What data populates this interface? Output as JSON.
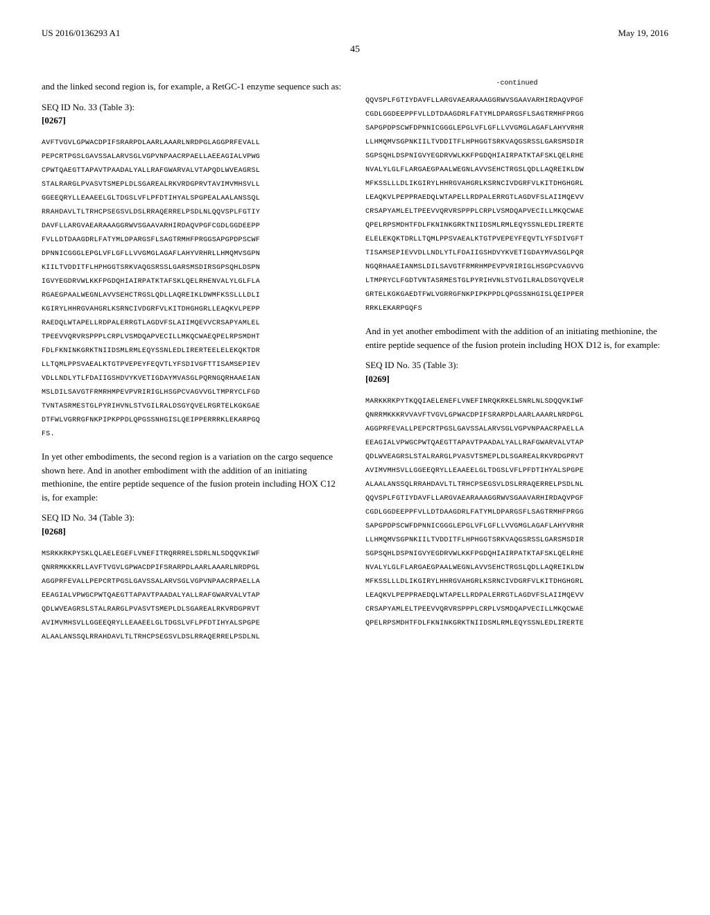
{
  "header": {
    "pub_number": "US 2016/0136293 A1",
    "pub_date": "May 19, 2016"
  },
  "page_number": "45",
  "left_col": {
    "intro_text": "and the linked second region is, for example, a RetGC-1 enzyme sequence such as:",
    "seq_label": "SEQ ID No. 33 (Table 3):",
    "para_num": "[0267]",
    "sequence": "AVFTVGVLGPWACDPIFSRARPDLAARLAAARLNRDPGLAGGPRFEVALL\nPEPCRTPGSLGAVSSALARVSGLVGPVNPAACRPAELLAEEAGIALVPWG\nCPWTQAEGTTAPAVTPAADALYALLRAFGWARVALVTAPQDLWVEAGRSL\nSTALRARGLPVASVTSMEPLDLSGAREALRKVRDGPRVTAVIMVMHSVLL\nGGEEQRYLLEAAEELGLTDGSLVFLPFDTIHYALSPGPEALAALANSSQL\nRRAHDAVLTLTRHCPSEGSVLDSLRRAQERRELPSDLNLQQVSPLFGTIY\nDAVFLLARGVAEARAAAGGRWVSGAAVARHIRDAQVPGFCGDLGGDEEPP\nFVLLDTDAAGDRLFATYMLDPARGSFLSAGTRMHFPRGGSAPGPDPSCWF\nDPNNICGGGLEPGLVFLGFLLVVGMGLAGAFLAHYVRHRLLHMQMVSGPN\nKIILTVDDITFLHPHGGTSRKVAQGSRSSLGARSMSDIRSGPSQHLDSPN\nIGVYEGDRVWLKKFPGDQHIAIRPATKTAFSKLQELRHENVALYLGLFLA\nRGAEGPAALWEGNLAVVSEHCTRGSLQDLLAQREIKLDWMFKSSLLLDLI\nKGIRYLHHRGVAHGRLKSRNCIVDGRFVLKITDHGHGRLLEAQKVLPEPP\nRAEDQLWTAPELLRDPALERRGTLAGDVFSLAIIMQEVVCRSAPYAMLEL\nTPEEVVQRVRSPPPLCRPLVSMDQAPVECILLMKQCWAEQPELRPSMDHT\nFDLFKNINKGRKTNIIDSMLRMLEQYSSNLEDLIRERTEELELEKQKTDR\nLLTQMLPPSVAEALKTGTPVEPEYFEQVTLYFSDIVGFTTISAMSEPIEV\nVDLLNDLYTLFDAIIGSHDVYKVETIGDAYMVASGLPQRNGQRHAAEIAN\nMSLDILSAVGTFRMRHMPEVPVRIRIGLHSGPCVAGVVGLTMPRYCLFGD\nTVNTASRMESTGLPYRIHVNLSTVGILRALDSGYQVELRGRTELKGKGAE\nDTFWLVGRRGFNKPIPKPPDLQPGSSNHGISLQEIPPERRRKLEKARPGQ\nFS.",
    "mid_text": "In yet other embodiments, the second region is a variation on the cargo sequence shown here. And in another embodiment with the addition of an initiating methionine, the entire peptide sequence of the fusion protein including HOX C12 is, for example:",
    "seq_label_2": "SEQ ID No. 34 (Table 3):",
    "para_num_2": "[0268]",
    "sequence_2": "MSRKKRKPYSKLQLAELEGEFLVNEFITRQRRRELSDRLNLSDQQVKIWF\nQNRRMKKKRLLAVFTVGVLGPWACDPIFSRARPDLAARLAAARLNRDPGL\nAGGPRFEVALLPEPCRTPGSLGAVSSALARVSGLVGPVNPAACRPAELLA\nEEAGIALVPWGCPWTQAEGTTAPAVTPAADALYALLRAFGWARVALVTAP\nQDLWVEAGRSLSTALRARGLPVASVTSMEPLDLSGAREALRKVRDGPRVT\nAVIMVMHSVLLGGEEQRYLLEAAEELGLTDGSLVFLPFDTIHYALSPGPE\nALAALANSSQLRRAHDAVLTLTRHCPSEGSVLDSLRRAQERRELPSDLNL"
  },
  "right_col": {
    "continued": "-continued",
    "sequence_top": "QQVSPLFGTIYDAVFLLARGVAEARAAAGGRWVSGAAVARHIRDAQVPGF\nCGDLGGDEEPPFVLLDTDAAGDRLFATYMLDPARGSFLSAGTRMHFPRGG\nSAPGPDPSCWFDPNNICGGGLEPGLVFLGFLLVVGMGLAGAFLAHYVRHR\nLLHMQMVSGPNKIILTVDDITFLHPHGGTSRKVAQGSRSSLGARSMSDIR\nSGPSQHLDSPNIGVYEGDRVWLKKFPGDQHIAIRPATKTAFSKLQELRHE\nNVALYLGLFLARGAEGPAALWEGNLAVVSEHCTRGSLQDLLAQREIKLDW\nMFKSSLLLDLIKGIRYLHHRGVAHGRLKSRNCIVDGRFVLKITDHGHGRL\nLEAQKVLPEPPRAEDQLWTAPELLRDPALERRGTLAGDVFSLAIIMQEVV\nCRSAPYAMLELTPEEVVQRVRSPPPLCRPLVSMDQAPVECILLMKQCWAE\nQPELRPSMDHTFDLFKNINKGRKTNIIDSMLRMLEQYSSNLEDLIRERTE\nELELEKQKTDRLLTQMLPPSVAEALKTGTPVEPEYFEQVTLYFSDIVGFT\nTISAMSEPIEVVDLLNDLYTLFDAIIGSHDVYKVETIGDAYMVASGLPQR\nNGQRHAAEIANMSLDILSAVGTFRMRHMPEVPVRIRIGLHSGPCVAGVVG\nLTMPRYCLFGDTVNTASRMESTGLPYRIHVNLSTVGILRALDSGYQVELR\nGRTELKGKGAEDTFWLVGRRGFNKPIPKPPDLQPGSSNHGISLQEIPPER\nRRKLEKARPGQFS",
    "mid_text": "And in yet another embodiment with the addition of an initiating methionine, the entire peptide sequence of the fusion protein including HOX D12 is, for example:",
    "seq_label": "SEQ ID No. 35 (Table 3):",
    "para_num": "[0269]",
    "sequence_bottom": "MARKKRKPYTKQQIAELENEFLVNEFINRQKRKELSNRLNLSDQQVKIWF\nQNRRMKKKRVVAVFTVGVLGPWACDPIFSRARPDLAARLAAARLNRDPGL\nAGGPRFEVALLPEPCRTPGSLGAVSSALARVSGLVGPVNPAACRPAELLA\nEEAGIALVPWGCPWTQAEGTTAPAVTPAADALYALLRAFGWARVALVTAP\nQDLWVEAGRSLSTALRARGLPVASVTSMEPLDLSGAREALRKVRDGPRVT\nAVIMVMHSVLLGGEEQRYLLEAAEELGLTDGSLVFLPFDTIHYALSPGPE\nALAALANSSQLRRAHDAVLTLTRHCPSEGSVLDSLRRAQERRELPSDLNL\nQQVSPLFGTIYDAVFLLARGVAEARAAAGGRWVSGAAVARHIRDAQVPGF\nCGDLGGDEEPPFVLLDTDAAGDRLFATYMLDPARGSFLSAGTRMHFPRGG\nSAPGPDPSCWFDPNNICGGGLEPGLVFLGFLLVVGMGLAGAFLAHYVRHR\nLLHMQMVSGPNKIILTVDDITFLHPHGGTSRKVAQGSRSSLGARSMSDIR\nSGPSQHLDSPNIGVYEGDRVWLKKFPGDQHIAIRPATKTAFSKLQELRHE\nNVALYLGLFLARGAEGPAALWEGNLAVVSEHCTRGSLQDLLAQREIKLDW\nMFKSSLLLDLIKGIRYLHHRGVAHGRLKSRNCIVDGRFVLKITDHGHGRL\nLEAQKVLPEPPRAEDQLWTAPELLRDPALERRGTLAGDVFSLAIIMQEVV\nCRSAPYAMLELTPEEVVQRVRSPPPLCRPLVSMDQAPVECILLMKQCWAE\nQPELRPSMDHTFDLFKNINKGRKTNIIDSMLRMLEQYSSNLEDLIRERTE"
  }
}
